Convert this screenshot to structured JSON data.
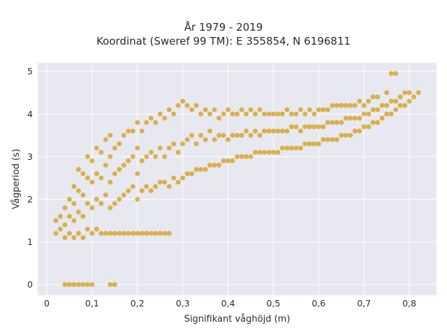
{
  "chart_data": {
    "type": "scatter",
    "title_line1": "År 1979 - 2019",
    "title_line2": "Koordinat (Sweref 99 TM): E 355854, N 6196811",
    "xlabel": "Signifikant våghöjd (m)",
    "ylabel": "Vågperiod (s)",
    "xlim": [
      -0.02,
      0.86
    ],
    "ylim": [
      -0.25,
      5.2
    ],
    "x_ticks": [
      0,
      0.1,
      0.2,
      0.3,
      0.4,
      0.5,
      0.6,
      0.7,
      0.8
    ],
    "x_tick_labels": [
      "0",
      "0,1",
      "0,2",
      "0,3",
      "0,4",
      "0,5",
      "0,6",
      "0,7",
      "0,8"
    ],
    "y_ticks": [
      0,
      1,
      2,
      3,
      4,
      5
    ],
    "y_tick_labels": [
      "0",
      "1",
      "2",
      "3",
      "4",
      "5"
    ],
    "grid": true,
    "legend": "none",
    "marker_color": "#d4a21f",
    "background_color": "#e8e8f0",
    "points": [
      [
        0.04,
        0.0
      ],
      [
        0.05,
        0.0
      ],
      [
        0.06,
        0.0
      ],
      [
        0.07,
        0.0
      ],
      [
        0.08,
        0.0
      ],
      [
        0.09,
        0.0
      ],
      [
        0.1,
        0.0
      ],
      [
        0.14,
        0.0
      ],
      [
        0.15,
        0.0
      ],
      [
        0.02,
        1.2
      ],
      [
        0.02,
        1.5
      ],
      [
        0.03,
        1.3
      ],
      [
        0.03,
        1.6
      ],
      [
        0.04,
        1.1
      ],
      [
        0.04,
        1.4
      ],
      [
        0.04,
        1.8
      ],
      [
        0.05,
        1.2
      ],
      [
        0.05,
        1.6
      ],
      [
        0.05,
        2.0
      ],
      [
        0.06,
        1.1
      ],
      [
        0.06,
        1.5
      ],
      [
        0.06,
        1.9
      ],
      [
        0.06,
        2.3
      ],
      [
        0.07,
        1.2
      ],
      [
        0.07,
        1.7
      ],
      [
        0.07,
        2.2
      ],
      [
        0.07,
        2.7
      ],
      [
        0.08,
        1.1
      ],
      [
        0.08,
        1.6
      ],
      [
        0.08,
        2.1
      ],
      [
        0.08,
        2.6
      ],
      [
        0.09,
        1.3
      ],
      [
        0.09,
        1.9
      ],
      [
        0.09,
        2.5
      ],
      [
        0.09,
        3.0
      ],
      [
        0.1,
        1.2
      ],
      [
        0.1,
        1.8
      ],
      [
        0.1,
        2.4
      ],
      [
        0.1,
        2.9
      ],
      [
        0.11,
        1.3
      ],
      [
        0.11,
        2.0
      ],
      [
        0.11,
        2.6
      ],
      [
        0.11,
        3.2
      ],
      [
        0.12,
        1.2
      ],
      [
        0.12,
        1.9
      ],
      [
        0.12,
        2.5
      ],
      [
        0.12,
        3.1
      ],
      [
        0.13,
        1.2
      ],
      [
        0.13,
        2.1
      ],
      [
        0.13,
        2.8
      ],
      [
        0.13,
        3.4
      ],
      [
        0.14,
        1.2
      ],
      [
        0.14,
        1.8
      ],
      [
        0.14,
        2.4
      ],
      [
        0.14,
        3.0
      ],
      [
        0.14,
        3.5
      ],
      [
        0.15,
        1.2
      ],
      [
        0.15,
        1.9
      ],
      [
        0.15,
        2.6
      ],
      [
        0.15,
        3.2
      ],
      [
        0.16,
        1.2
      ],
      [
        0.16,
        2.0
      ],
      [
        0.16,
        2.7
      ],
      [
        0.16,
        3.3
      ],
      [
        0.17,
        1.2
      ],
      [
        0.17,
        2.1
      ],
      [
        0.17,
        2.8
      ],
      [
        0.17,
        3.5
      ],
      [
        0.18,
        1.2
      ],
      [
        0.18,
        2.2
      ],
      [
        0.18,
        2.9
      ],
      [
        0.18,
        3.6
      ],
      [
        0.19,
        1.2
      ],
      [
        0.19,
        2.3
      ],
      [
        0.19,
        3.0
      ],
      [
        0.19,
        3.6
      ],
      [
        0.2,
        1.2
      ],
      [
        0.2,
        2.0
      ],
      [
        0.2,
        2.6
      ],
      [
        0.2,
        3.2
      ],
      [
        0.2,
        3.8
      ],
      [
        0.21,
        1.2
      ],
      [
        0.21,
        2.2
      ],
      [
        0.21,
        2.9
      ],
      [
        0.21,
        3.6
      ],
      [
        0.22,
        1.2
      ],
      [
        0.22,
        2.3
      ],
      [
        0.22,
        3.0
      ],
      [
        0.22,
        3.8
      ],
      [
        0.23,
        1.2
      ],
      [
        0.23,
        2.2
      ],
      [
        0.23,
        3.1
      ],
      [
        0.23,
        3.9
      ],
      [
        0.24,
        1.2
      ],
      [
        0.24,
        2.3
      ],
      [
        0.24,
        3.0
      ],
      [
        0.24,
        3.8
      ],
      [
        0.25,
        1.2
      ],
      [
        0.25,
        2.4
      ],
      [
        0.25,
        3.2
      ],
      [
        0.25,
        4.0
      ],
      [
        0.26,
        1.2
      ],
      [
        0.26,
        2.4
      ],
      [
        0.26,
        3.0
      ],
      [
        0.26,
        3.9
      ],
      [
        0.27,
        1.2
      ],
      [
        0.27,
        2.3
      ],
      [
        0.27,
        3.2
      ],
      [
        0.27,
        4.1
      ],
      [
        0.28,
        2.5
      ],
      [
        0.28,
        3.3
      ],
      [
        0.28,
        4.0
      ],
      [
        0.29,
        2.4
      ],
      [
        0.29,
        3.1
      ],
      [
        0.29,
        4.2
      ],
      [
        0.3,
        2.5
      ],
      [
        0.3,
        3.3
      ],
      [
        0.3,
        4.3
      ],
      [
        0.31,
        2.6
      ],
      [
        0.31,
        3.4
      ],
      [
        0.31,
        4.2
      ],
      [
        0.32,
        2.6
      ],
      [
        0.32,
        3.5
      ],
      [
        0.32,
        4.1
      ],
      [
        0.33,
        2.7
      ],
      [
        0.33,
        3.3
      ],
      [
        0.33,
        4.2
      ],
      [
        0.34,
        2.7
      ],
      [
        0.34,
        3.5
      ],
      [
        0.34,
        4.0
      ],
      [
        0.35,
        2.7
      ],
      [
        0.35,
        3.4
      ],
      [
        0.35,
        4.1
      ],
      [
        0.36,
        2.8
      ],
      [
        0.36,
        3.6
      ],
      [
        0.36,
        4.0
      ],
      [
        0.37,
        2.8
      ],
      [
        0.37,
        3.4
      ],
      [
        0.37,
        4.1
      ],
      [
        0.38,
        2.8
      ],
      [
        0.38,
        3.5
      ],
      [
        0.38,
        3.9
      ],
      [
        0.39,
        2.9
      ],
      [
        0.39,
        3.5
      ],
      [
        0.39,
        4.0
      ],
      [
        0.4,
        2.9
      ],
      [
        0.4,
        3.4
      ],
      [
        0.4,
        4.1
      ],
      [
        0.41,
        2.9
      ],
      [
        0.41,
        3.5
      ],
      [
        0.41,
        4.0
      ],
      [
        0.42,
        3.0
      ],
      [
        0.42,
        3.5
      ],
      [
        0.42,
        4.0
      ],
      [
        0.43,
        3.0
      ],
      [
        0.43,
        3.5
      ],
      [
        0.43,
        4.1
      ],
      [
        0.44,
        3.0
      ],
      [
        0.44,
        3.6
      ],
      [
        0.44,
        4.0
      ],
      [
        0.45,
        3.0
      ],
      [
        0.45,
        3.5
      ],
      [
        0.45,
        4.1
      ],
      [
        0.46,
        3.1
      ],
      [
        0.46,
        3.6
      ],
      [
        0.46,
        4.0
      ],
      [
        0.47,
        3.1
      ],
      [
        0.47,
        3.5
      ],
      [
        0.47,
        4.1
      ],
      [
        0.48,
        3.1
      ],
      [
        0.48,
        3.6
      ],
      [
        0.48,
        4.0
      ],
      [
        0.49,
        3.1
      ],
      [
        0.49,
        3.6
      ],
      [
        0.49,
        4.0
      ],
      [
        0.5,
        3.1
      ],
      [
        0.5,
        3.6
      ],
      [
        0.5,
        4.0
      ],
      [
        0.51,
        3.1
      ],
      [
        0.51,
        3.6
      ],
      [
        0.51,
        4.0
      ],
      [
        0.52,
        3.2
      ],
      [
        0.52,
        3.6
      ],
      [
        0.52,
        4.0
      ],
      [
        0.53,
        3.2
      ],
      [
        0.53,
        3.6
      ],
      [
        0.53,
        4.1
      ],
      [
        0.54,
        3.2
      ],
      [
        0.54,
        3.7
      ],
      [
        0.54,
        4.0
      ],
      [
        0.55,
        3.2
      ],
      [
        0.55,
        3.7
      ],
      [
        0.55,
        4.0
      ],
      [
        0.56,
        3.2
      ],
      [
        0.56,
        3.6
      ],
      [
        0.56,
        4.1
      ],
      [
        0.57,
        3.3
      ],
      [
        0.57,
        3.7
      ],
      [
        0.57,
        4.0
      ],
      [
        0.58,
        3.3
      ],
      [
        0.58,
        3.7
      ],
      [
        0.58,
        4.1
      ],
      [
        0.59,
        3.3
      ],
      [
        0.59,
        3.7
      ],
      [
        0.59,
        4.0
      ],
      [
        0.6,
        3.3
      ],
      [
        0.6,
        3.7
      ],
      [
        0.6,
        4.1
      ],
      [
        0.61,
        3.4
      ],
      [
        0.61,
        3.7
      ],
      [
        0.61,
        4.1
      ],
      [
        0.62,
        3.4
      ],
      [
        0.62,
        3.8
      ],
      [
        0.62,
        4.1
      ],
      [
        0.63,
        3.4
      ],
      [
        0.63,
        3.8
      ],
      [
        0.63,
        4.2
      ],
      [
        0.64,
        3.4
      ],
      [
        0.64,
        3.8
      ],
      [
        0.64,
        4.2
      ],
      [
        0.65,
        3.5
      ],
      [
        0.65,
        3.8
      ],
      [
        0.65,
        4.2
      ],
      [
        0.66,
        3.5
      ],
      [
        0.66,
        3.9
      ],
      [
        0.66,
        4.2
      ],
      [
        0.67,
        3.5
      ],
      [
        0.67,
        3.9
      ],
      [
        0.67,
        4.2
      ],
      [
        0.68,
        3.6
      ],
      [
        0.68,
        3.9
      ],
      [
        0.68,
        4.2
      ],
      [
        0.69,
        3.6
      ],
      [
        0.69,
        3.9
      ],
      [
        0.69,
        4.3
      ],
      [
        0.7,
        3.7
      ],
      [
        0.7,
        4.0
      ],
      [
        0.7,
        4.2
      ],
      [
        0.71,
        3.7
      ],
      [
        0.71,
        4.0
      ],
      [
        0.71,
        4.3
      ],
      [
        0.72,
        3.8
      ],
      [
        0.72,
        4.1
      ],
      [
        0.72,
        4.4
      ],
      [
        0.73,
        3.8
      ],
      [
        0.73,
        4.1
      ],
      [
        0.73,
        4.4
      ],
      [
        0.74,
        3.9
      ],
      [
        0.74,
        4.2
      ],
      [
        0.75,
        4.0
      ],
      [
        0.75,
        4.2
      ],
      [
        0.75,
        4.5
      ],
      [
        0.76,
        4.0
      ],
      [
        0.76,
        4.3
      ],
      [
        0.76,
        4.95
      ],
      [
        0.77,
        4.1
      ],
      [
        0.77,
        4.3
      ],
      [
        0.77,
        4.95
      ],
      [
        0.78,
        4.2
      ],
      [
        0.78,
        4.4
      ],
      [
        0.79,
        4.2
      ],
      [
        0.79,
        4.5
      ],
      [
        0.8,
        4.3
      ],
      [
        0.8,
        4.5
      ],
      [
        0.81,
        4.4
      ],
      [
        0.82,
        4.5
      ]
    ]
  }
}
